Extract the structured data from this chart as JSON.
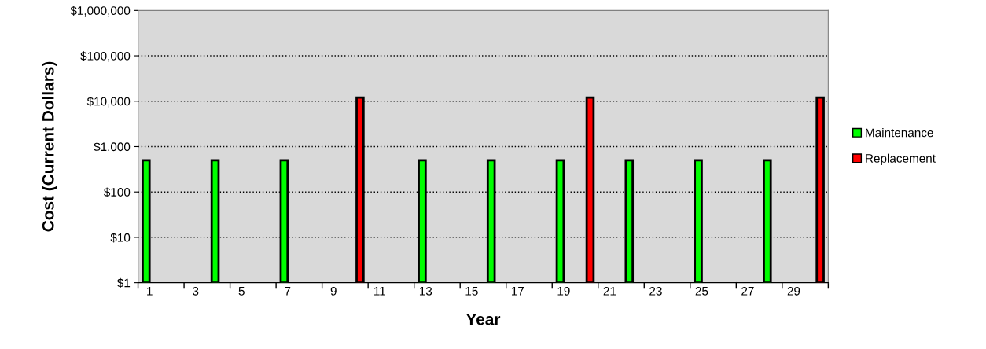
{
  "chart_data": {
    "type": "bar",
    "xlabel": "Year",
    "ylabel": "Cost (Current Dollars)",
    "categories": [
      "1",
      null,
      "3",
      null,
      "5",
      null,
      "7",
      null,
      "9",
      null,
      "11",
      null,
      "13",
      null,
      "15",
      null,
      "17",
      null,
      "19",
      null,
      "21",
      null,
      "23",
      null,
      "25",
      null,
      "27",
      null,
      "29",
      null
    ],
    "series": [
      {
        "name": "Maintenance",
        "color": "#00ff00",
        "values": [
          500,
          null,
          null,
          500,
          null,
          null,
          500,
          null,
          null,
          null,
          null,
          null,
          500,
          null,
          null,
          500,
          null,
          null,
          500,
          null,
          null,
          500,
          null,
          null,
          500,
          null,
          null,
          500,
          null,
          null
        ]
      },
      {
        "name": "Replacement",
        "color": "#ff0000",
        "values": [
          null,
          null,
          null,
          null,
          null,
          null,
          null,
          null,
          null,
          12000,
          null,
          null,
          null,
          null,
          null,
          null,
          null,
          null,
          null,
          12000,
          null,
          null,
          null,
          null,
          null,
          null,
          null,
          null,
          null,
          12000
        ]
      }
    ],
    "log": true,
    "ylim": [
      1,
      1000000
    ],
    "yticks": [
      {
        "value": 1,
        "label": "$1"
      },
      {
        "value": 10,
        "label": "$10"
      },
      {
        "value": 100,
        "label": "$100"
      },
      {
        "value": 1000,
        "label": "$1,000"
      },
      {
        "value": 10000,
        "label": "$10,000"
      },
      {
        "value": 100000,
        "label": "$100,000"
      },
      {
        "value": 1000000,
        "label": "$1,000,000"
      }
    ],
    "grid": "y",
    "legend": "right"
  }
}
